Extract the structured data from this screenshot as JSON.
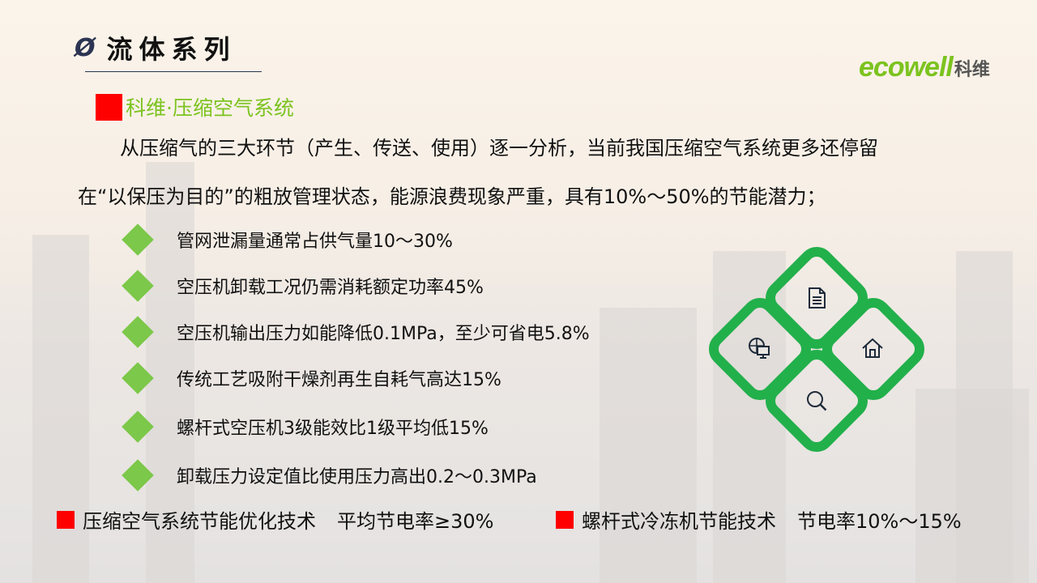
{
  "header": {
    "title_symbol": "Ø",
    "title": "流体系列"
  },
  "logo": {
    "brand": "ecowell",
    "brand_cn": "科维"
  },
  "section": {
    "heading": "科维·压缩空气系统"
  },
  "intro": {
    "line1": "从压缩气的三大环节（产生、传送、使用）逐一分析，当前我国压缩空气系统更多还停留",
    "line2": "在“以保压为目的”的粗放管理状态，能源浪费现象严重，具有10%～50%的节能潜力；"
  },
  "bullets": [
    "管网泄漏量通常占供气量10～30%",
    "空压机卸载工况仍需消耗额定功率45%",
    "空压机输出压力如能降低0.1MPa，至少可省电5.8%",
    "传统工艺吸附干燥剂再生自耗气高达15%",
    "螺杆式空压机3级能效比1级平均低15%",
    "卸载压力设定值比使用压力高出0.2～0.3MPa"
  ],
  "footer": [
    {
      "label": "压缩空气系统节能优化技术",
      "value": "平均节电率≥30%"
    },
    {
      "label": "螺杆式冷冻机节能技术",
      "value": "节电率10%～15%"
    }
  ],
  "graphic": {
    "icons": [
      "document-icon",
      "globe-monitor-icon",
      "home-icon",
      "search-icon"
    ],
    "color": "#22b04b"
  },
  "colors": {
    "accent_green": "#7cc31f",
    "marker_red": "#ff0000",
    "bullet_green": "#7cc84a"
  }
}
